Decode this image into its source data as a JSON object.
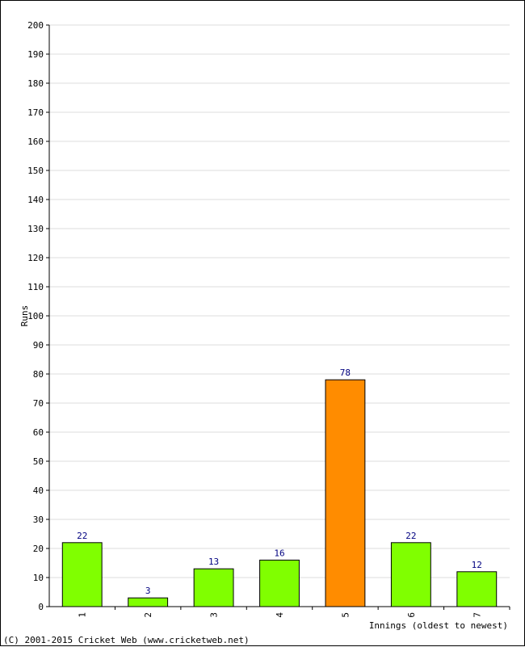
{
  "chart_data": {
    "type": "bar",
    "categories": [
      "1",
      "2",
      "3",
      "4",
      "5",
      "6",
      "7"
    ],
    "values": [
      22,
      3,
      13,
      16,
      78,
      22,
      12
    ],
    "bar_colors": [
      "#80ff00",
      "#80ff00",
      "#80ff00",
      "#80ff00",
      "#ff8c00",
      "#80ff00",
      "#80ff00"
    ],
    "value_label_color": "#000080",
    "grid_color": "#dddddd",
    "ylabel": "Runs",
    "xlabel": "Innings (oldest to newest)",
    "ylim": [
      0,
      200
    ],
    "ytick_step": 10,
    "grid": true
  },
  "footer": {
    "copyright": "(C) 2001-2015 Cricket Web (www.cricketweb.net)"
  }
}
